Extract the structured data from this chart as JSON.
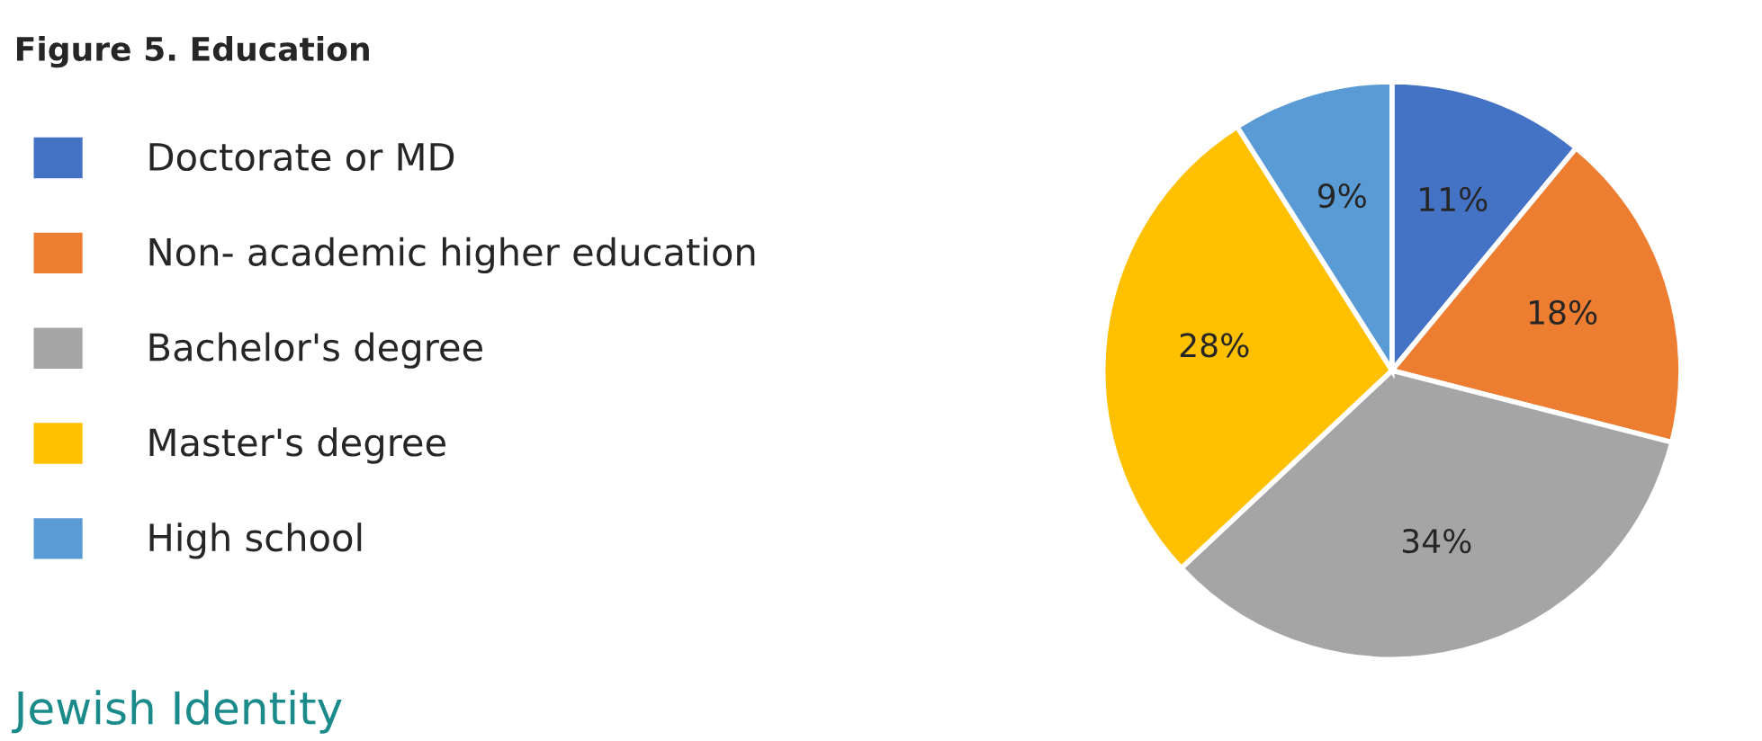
{
  "chart_data": {
    "type": "pie",
    "title": "Figure 5. Education",
    "categories": [
      "Doctorate or MD",
      "Non- academic higher education",
      "Bachelor's degree",
      "Master's degree",
      "High school"
    ],
    "values": [
      11,
      18,
      34,
      28,
      9
    ],
    "value_labels": [
      "11%",
      "18%",
      "34%",
      "28%",
      "9%"
    ],
    "colors": [
      "#4472c4",
      "#ed7d31",
      "#a5a5a5",
      "#ffc000",
      "#5b9bd5"
    ],
    "legend": "left",
    "annotations": [
      "Jewish Identity"
    ]
  }
}
